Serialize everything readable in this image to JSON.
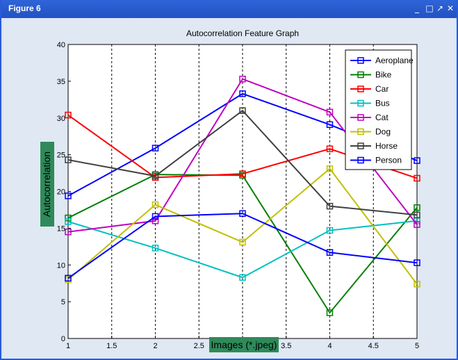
{
  "window": {
    "title": "Figure 6",
    "minimize": "_",
    "maximize": "□",
    "restore": "↗",
    "close": "✕"
  },
  "colors": {
    "titlebar": "#2f64d8",
    "label_bg": "#2f8a5a"
  },
  "chart_data": {
    "type": "line",
    "title": "Autocorrelation Feature Graph",
    "xlabel": "Images (*.jpeg)",
    "ylabel": "Autocorrelation",
    "xlim": [
      1,
      5
    ],
    "ylim": [
      0,
      40
    ],
    "xticks": [
      1,
      1.5,
      2,
      2.5,
      3,
      3.5,
      4,
      4.5,
      5
    ],
    "yticks": [
      0,
      5,
      10,
      15,
      20,
      25,
      30,
      35,
      40
    ],
    "x": [
      1,
      2,
      3,
      4,
      5
    ],
    "grid": "vertical dashed",
    "legend_position": "top-right",
    "marker": "square",
    "series": [
      {
        "name": "Aeroplane",
        "color": "#0000ff",
        "values": [
          19.4,
          25.9,
          33.3,
          29.1,
          24.2
        ]
      },
      {
        "name": "Bike",
        "color": "#008000",
        "values": [
          16.4,
          22.3,
          22.2,
          3.5,
          17.8
        ]
      },
      {
        "name": "Car",
        "color": "#ff0000",
        "values": [
          30.4,
          21.9,
          22.4,
          25.8,
          21.8
        ]
      },
      {
        "name": "Bus",
        "color": "#00c0c0",
        "values": [
          15.9,
          12.3,
          8.3,
          14.7,
          16.0
        ]
      },
      {
        "name": "Cat",
        "color": "#c000c0",
        "values": [
          14.5,
          16.0,
          35.3,
          30.8,
          15.5
        ]
      },
      {
        "name": "Dog",
        "color": "#c0c000",
        "values": [
          8.0,
          18.2,
          13.1,
          23.1,
          7.4
        ]
      },
      {
        "name": "Horse",
        "color": "#404040",
        "values": [
          24.3,
          22.1,
          31.0,
          18.0,
          16.8
        ]
      },
      {
        "name": "Person",
        "color": "#0000ff",
        "values": [
          8.2,
          16.6,
          17.0,
          11.7,
          10.3
        ]
      }
    ]
  }
}
